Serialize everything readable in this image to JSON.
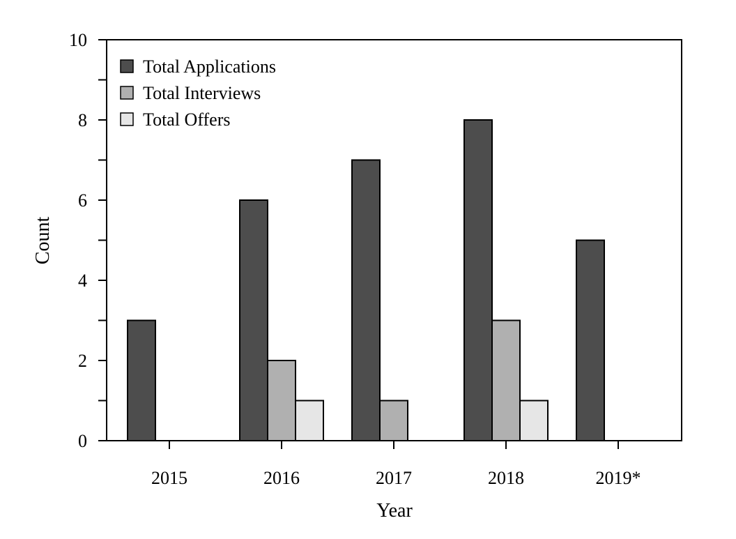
{
  "chart_data": {
    "type": "bar",
    "xlabel": "Year",
    "ylabel": "Count",
    "categories": [
      "2015",
      "2016",
      "2017",
      "2018",
      "2019*"
    ],
    "series": [
      {
        "name": "Total Applications",
        "values": [
          3,
          6,
          7,
          8,
          5
        ],
        "color": "#4d4d4d"
      },
      {
        "name": "Total Interviews",
        "values": [
          0,
          2,
          1,
          3,
          0
        ],
        "color": "#b0b0b0"
      },
      {
        "name": "Total Offers",
        "values": [
          0,
          1,
          0,
          1,
          0
        ],
        "color": "#e6e6e6"
      }
    ],
    "ylim": [
      0,
      10
    ],
    "yticks": [
      "0",
      "2",
      "4",
      "6",
      "8",
      "10"
    ],
    "minor_yticks": [
      1,
      3,
      5,
      7,
      9
    ],
    "grid": false,
    "legend_position": "top-left",
    "bar_edge_color": "#000000"
  }
}
